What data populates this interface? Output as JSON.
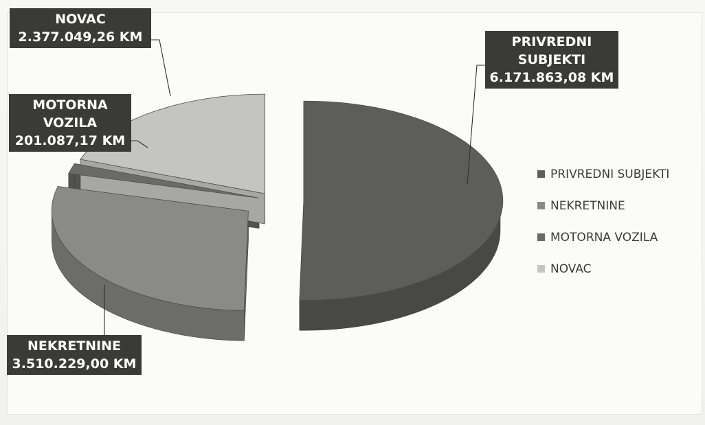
{
  "chart_data": {
    "type": "pie",
    "title": "",
    "categories": [
      "PRIVREDNI SUBJEKTI",
      "NEKRETNINE",
      "MOTORNA VOZILA",
      "NOVAC"
    ],
    "values": [
      6171863.08,
      3510229.0,
      201087.17,
      2377049.26
    ],
    "value_labels": [
      "6.171.863,08 KM",
      "3.510.229,00 KM",
      "201.087,17 KM",
      "2.377.049,26 KM"
    ],
    "unit": "KM",
    "exploded": true,
    "three_d": true,
    "legend_position": "right",
    "colors": [
      "#5d5e5c",
      "#8a8b89",
      "#6a6b69",
      "#c4c5c3"
    ],
    "side_colors": [
      "#484947",
      "#6c6d6b",
      "#525351",
      "#a7a8a6"
    ]
  },
  "labels": {
    "privredni": {
      "line1": "PRIVREDNI",
      "line2": "SUBJEKTI",
      "value": "6.171.863,08 KM"
    },
    "nekretnine": {
      "line1": "NEKRETNINE",
      "value": "3.510.229,00 KM"
    },
    "motorna": {
      "line1": "MOTORNA",
      "line2": "VOZILA",
      "value": "201.087,17 KM"
    },
    "novac": {
      "line1": "NOVAC",
      "value": "2.377.049,26 KM"
    }
  },
  "legend": {
    "items": [
      {
        "label": "PRIVREDNI SUBJEKTI",
        "color": "#5d5e5c"
      },
      {
        "label": "NEKRETNINE",
        "color": "#8a8b89"
      },
      {
        "label": "MOTORNA VOZILA",
        "color": "#6a6b69"
      },
      {
        "label": "NOVAC",
        "color": "#c4c5c3"
      }
    ]
  }
}
